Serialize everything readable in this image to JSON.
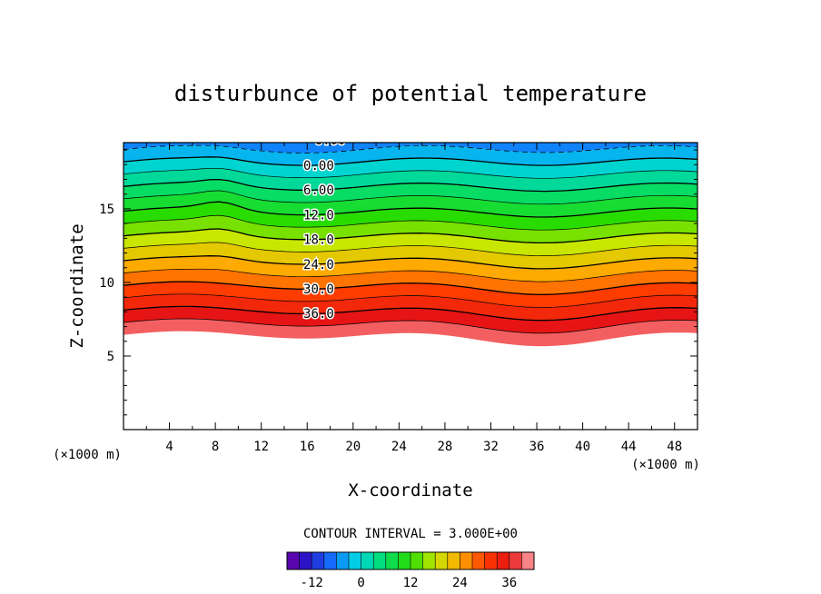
{
  "chart_data": {
    "type": "contour",
    "title": "disturbunce of potential temperature",
    "xlabel": "X-coordinate",
    "ylabel": "Z-coordinate",
    "x_unit": "(×1000 m)",
    "z_unit": "(×1000 m)",
    "xlim": [
      0,
      50
    ],
    "ylim": [
      0,
      19.5
    ],
    "x_ticks": [
      "4",
      "8",
      "12",
      "16",
      "20",
      "24",
      "28",
      "32",
      "36",
      "40",
      "44",
      "48"
    ],
    "y_ticks": [
      "5",
      "10",
      "15"
    ],
    "contour_interval_label": "CONTOUR INTERVAL = 3.000E+00",
    "contour_interval": 3.0,
    "colorbar_ticks": [
      "-12",
      "0",
      "12",
      "24",
      "36"
    ],
    "colorbar_range": [
      -18,
      42
    ],
    "contour_labels": [
      "18.0",
      "12.0",
      "6.00",
      "0.00",
      "6.00",
      "12.0",
      "18.0",
      "24.0",
      "30.0",
      "36.0"
    ],
    "grid": false
  }
}
